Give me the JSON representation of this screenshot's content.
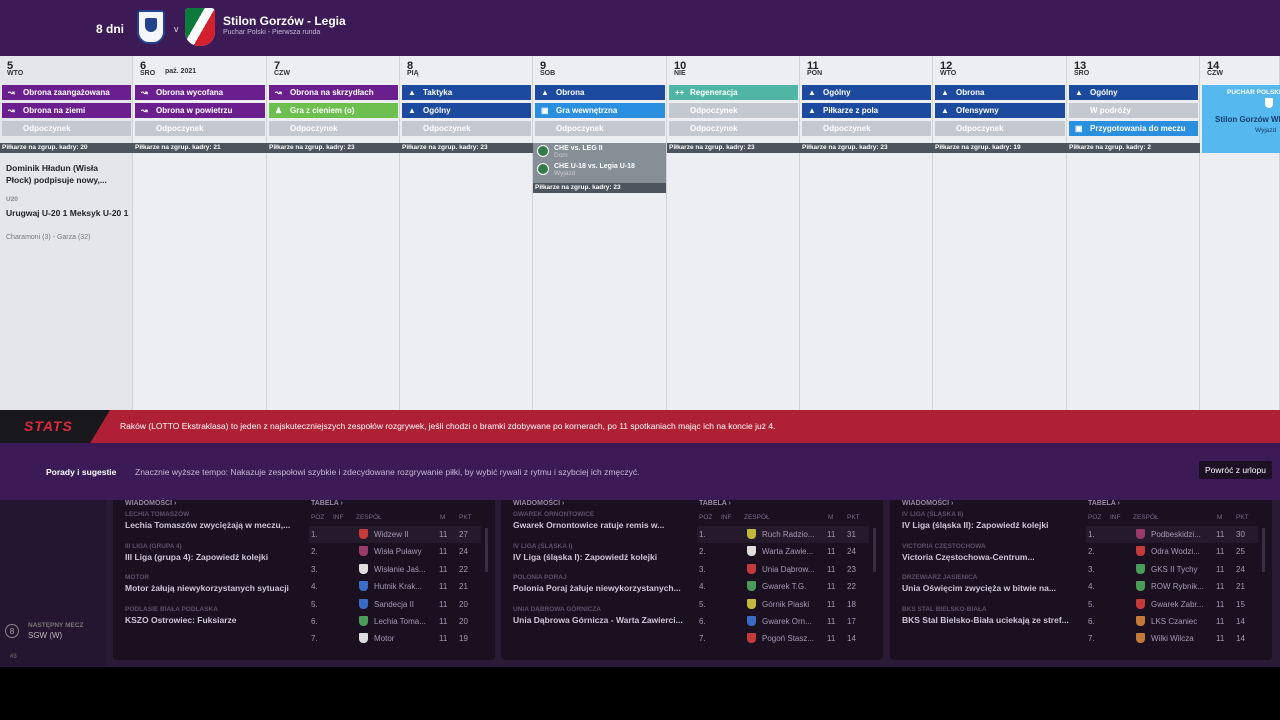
{
  "header": {
    "days_left": "8 dni",
    "vs": "v",
    "title": "Stilon Gorzów - Legia",
    "subtitle": "Puchar Polski - Pierwsza runda"
  },
  "calendar": {
    "days": [
      {
        "num": "5",
        "name": "WTO",
        "month": "",
        "sessions": [
          {
            "label": "Obrona zaangażowana",
            "kind": "p",
            "icon": "↝"
          },
          {
            "label": "Obrona na ziemi",
            "kind": "p",
            "icon": "↝"
          },
          {
            "label": "Odpoczynek",
            "kind": "r",
            "icon": ""
          }
        ],
        "bar": "Piłkarze na zgrup. kadry: 20"
      },
      {
        "num": "6",
        "name": "ŚRO",
        "month": "paź. 2021",
        "sessions": [
          {
            "label": "Obrona wycofana",
            "kind": "p",
            "icon": "↝"
          },
          {
            "label": "Obrona w powietrzu",
            "kind": "p",
            "icon": "↝"
          },
          {
            "label": "Odpoczynek",
            "kind": "r",
            "icon": ""
          }
        ],
        "bar": "Piłkarze na zgrup. kadry: 21"
      },
      {
        "num": "7",
        "name": "CZW",
        "month": "",
        "sessions": [
          {
            "label": "Obrona na skrzydłach",
            "kind": "p",
            "icon": "↝"
          },
          {
            "label": "Gra z cieniem (o)",
            "kind": "g2",
            "icon": "♟"
          },
          {
            "label": "Odpoczynek",
            "kind": "r",
            "icon": ""
          }
        ],
        "bar": "Piłkarze na zgrup. kadry: 23"
      },
      {
        "num": "8",
        "name": "PIĄ",
        "month": "",
        "sessions": [
          {
            "label": "Taktyka",
            "kind": "b",
            "icon": "▲"
          },
          {
            "label": "Ogólny",
            "kind": "b",
            "icon": "▲"
          },
          {
            "label": "Odpoczynek",
            "kind": "r",
            "icon": ""
          }
        ],
        "bar": "Piłkarze na zgrup. kadry: 23"
      },
      {
        "num": "9",
        "name": "SOB",
        "month": "",
        "sessions": [
          {
            "label": "Obrona",
            "kind": "b",
            "icon": "▲"
          },
          {
            "label": "Gra wewnętrzna",
            "kind": "c",
            "icon": "▣"
          },
          {
            "label": "Odpoczynek",
            "kind": "r",
            "icon": ""
          }
        ],
        "bar": ""
      },
      {
        "num": "10",
        "name": "NIE",
        "month": "",
        "sessions": [
          {
            "label": "Regeneracja",
            "kind": "t",
            "icon": "++"
          },
          {
            "label": "Odpoczynek",
            "kind": "r",
            "icon": ""
          },
          {
            "label": "Odpoczynek",
            "kind": "r",
            "icon": ""
          }
        ],
        "bar": "Piłkarze na zgrup. kadry: 23"
      },
      {
        "num": "11",
        "name": "PON",
        "month": "",
        "sessions": [
          {
            "label": "Ogólny",
            "kind": "b",
            "icon": "▲"
          },
          {
            "label": "Piłkarze z pola",
            "kind": "b",
            "icon": "▲"
          },
          {
            "label": "Odpoczynek",
            "kind": "r",
            "icon": ""
          }
        ],
        "bar": "Piłkarze na zgrup. kadry: 23"
      },
      {
        "num": "12",
        "name": "WTO",
        "month": "",
        "sessions": [
          {
            "label": "Obrona",
            "kind": "b",
            "icon": "▲"
          },
          {
            "label": "Ofensywny",
            "kind": "b",
            "icon": "▲"
          },
          {
            "label": "Odpoczynek",
            "kind": "r",
            "icon": ""
          }
        ],
        "bar": "Piłkarze na zgrup. kadry: 19"
      },
      {
        "num": "13",
        "name": "ŚRO",
        "month": "",
        "sessions": [
          {
            "label": "Ogólny",
            "kind": "b",
            "icon": "▲"
          },
          {
            "label": "W podróży",
            "kind": "r",
            "icon": ""
          },
          {
            "label": "Przygotowania do meczu",
            "kind": "c",
            "icon": "▣"
          }
        ],
        "bar": "Piłkarze na zgrup. kadry: 2"
      },
      {
        "num": "14",
        "name": "CZW",
        "month": "",
        "sessions": [],
        "bar": ""
      }
    ],
    "news_day5": {
      "headline": "Dominik Hładun (Wisła Płock) podpisuje nowy,...",
      "u20_label": "U20",
      "u20_title": "Urugwaj U-20 1 Meksyk U-20 1",
      "u20_scorers": "Charamoni (3) - Garza (32)"
    },
    "fixtures_day9": {
      "f1_title": "CHE vs. LEG II",
      "f1_sub": "Dom",
      "f2_title": "CHE U-18 vs. Legia U-18",
      "f2_sub": "Wyjazd",
      "bar": "Piłkarze na zgrup. kadry: 23"
    },
    "cup_day14": {
      "competition": "PUCHAR POLSKI",
      "team": "Stilon Gorzów Wlkp.",
      "venue": "Wyjazd"
    }
  },
  "stats_banner": {
    "logo": "STATS",
    "text": "Raków (LOTTO Ekstraklasa) to jeden z najskuteczniejszych zespołów rozgrywek, jeśli chodzi o bramki zdobywane po kornerach, po 11 spotkaniach mając ich na koncie już 4."
  },
  "tips": {
    "label": "Porady i sugestie",
    "text": "Znacznie wyższe tempo: Nakazuje zespołowi szybkie i zdecydowane rozgrywanie piłki, by wybić rywali z rytmu i szybciej ich zmęczyć.",
    "button": "Powróć z urlopu"
  },
  "next_match": {
    "num": "8",
    "label": "NASTĘPNY MECZ",
    "value": "SGW (W)",
    "footer": "#3"
  },
  "panels": [
    {
      "news_header": "WIADOMOŚCI ›",
      "table_header": "TABELA ›",
      "news": [
        {
          "cat": "LECHIA TOMASZÓW",
          "title": "Lechia Tomaszów zwyciężają w meczu,..."
        },
        {
          "cat": "III LIGA (GRUPA 4)",
          "title": "III Liga (grupa 4): Zapowiedź kolejki"
        },
        {
          "cat": "MOTOR",
          "title": "Motor żałują niewykorzystanych sytuacji"
        },
        {
          "cat": "PODLASIE BIAŁA PODLASKA",
          "title": "KSZO Ostrowiec: Fuksiarze"
        }
      ],
      "cols": {
        "poz": "POZ",
        "inf": "INF",
        "team": "ZESPÓŁ",
        "m": "M",
        "pkt": "PKT"
      },
      "rows": [
        {
          "poz": "1.",
          "team": "Widzew II",
          "m": "11",
          "pkt": "27",
          "color": "#c43a3a"
        },
        {
          "poz": "2.",
          "team": "Wisła Puławy",
          "m": "11",
          "pkt": "24",
          "color": "#9a3a6a"
        },
        {
          "poz": "3.",
          "team": "Wisłanie Jaś...",
          "m": "11",
          "pkt": "22",
          "color": "#dddddd"
        },
        {
          "poz": "4.",
          "team": "Hutnik Krak...",
          "m": "11",
          "pkt": "21",
          "color": "#3a6ac4"
        },
        {
          "poz": "5.",
          "team": "Sandecja II",
          "m": "11",
          "pkt": "20",
          "color": "#3a6ac4"
        },
        {
          "poz": "6.",
          "team": "Lechia Toma...",
          "m": "11",
          "pkt": "20",
          "color": "#4a9a5a"
        },
        {
          "poz": "7.",
          "team": "Motor",
          "m": "11",
          "pkt": "19",
          "color": "#dddddd"
        }
      ]
    },
    {
      "news_header": "WIADOMOŚCI ›",
      "table_header": "TABELA ›",
      "news": [
        {
          "cat": "GWAREK ORNONTOWICE",
          "title": "Gwarek Ornontowice ratuje remis w..."
        },
        {
          "cat": "IV LIGA (ŚLĄSKA I)",
          "title": "IV Liga (śląska I): Zapowiedź kolejki"
        },
        {
          "cat": "POLONIA PORAJ",
          "title": "Polonia Poraj żałuje niewykorzystanych..."
        },
        {
          "cat": "UNIA DĄBROWA GÓRNICZA",
          "title": "Unia Dąbrowa Górnicza - Warta Zawierci..."
        }
      ],
      "cols": {
        "poz": "POZ",
        "inf": "INF",
        "team": "ZESPÓŁ",
        "m": "M",
        "pkt": "PKT"
      },
      "rows": [
        {
          "poz": "1.",
          "team": "Ruch Radzio...",
          "m": "11",
          "pkt": "31",
          "color": "#c4b83a"
        },
        {
          "poz": "2.",
          "team": "Warta Zawie...",
          "m": "11",
          "pkt": "24",
          "color": "#dddddd"
        },
        {
          "poz": "3.",
          "team": "Unia Dąbrow...",
          "m": "11",
          "pkt": "23",
          "color": "#c43a3a"
        },
        {
          "poz": "4.",
          "team": "Gwarek T.G.",
          "m": "11",
          "pkt": "22",
          "color": "#4a9a5a"
        },
        {
          "poz": "5.",
          "team": "Górnik Piaski",
          "m": "11",
          "pkt": "18",
          "color": "#c4b83a"
        },
        {
          "poz": "6.",
          "team": "Gwarek Orn...",
          "m": "11",
          "pkt": "17",
          "color": "#3a6ac4"
        },
        {
          "poz": "7.",
          "team": "Pogoń Stasz...",
          "m": "11",
          "pkt": "14",
          "color": "#c43a3a"
        }
      ]
    },
    {
      "news_header": "WIADOMOŚCI ›",
      "table_header": "TABELA ›",
      "news": [
        {
          "cat": "IV LIGA (ŚLĄSKA II)",
          "title": "IV Liga (śląska II): Zapowiedź kolejki"
        },
        {
          "cat": "VICTORIA CZĘSTOCHOWA",
          "title": "Victoria Częstochowa-Centrum..."
        },
        {
          "cat": "DRZEWIARZ JASIENICA",
          "title": "Unia Oświęcim zwycięża w bitwie na..."
        },
        {
          "cat": "BKS STAL BIELSKO-BIAŁA",
          "title": "BKS Stal Bielsko-Biała uciekają ze stref..."
        }
      ],
      "cols": {
        "poz": "POZ",
        "inf": "INF",
        "team": "ZESPÓŁ",
        "m": "M",
        "pkt": "PKT"
      },
      "rows": [
        {
          "poz": "1.",
          "team": "Podbeskidzi...",
          "m": "11",
          "pkt": "30",
          "color": "#9a3a6a"
        },
        {
          "poz": "2.",
          "team": "Odra Wodzi...",
          "m": "11",
          "pkt": "25",
          "color": "#c43a3a"
        },
        {
          "poz": "3.",
          "team": "GKS II Tychy",
          "m": "11",
          "pkt": "24",
          "color": "#4a9a5a"
        },
        {
          "poz": "4.",
          "team": "ROW Rybnik...",
          "m": "11",
          "pkt": "21",
          "color": "#4a9a5a"
        },
        {
          "poz": "5.",
          "team": "Gwarek Zabr...",
          "m": "11",
          "pkt": "15",
          "color": "#c43a3a"
        },
        {
          "poz": "6.",
          "team": "LKS Czaniec",
          "m": "11",
          "pkt": "14",
          "color": "#c4783a"
        },
        {
          "poz": "7.",
          "team": "Wilki Wilcza",
          "m": "11",
          "pkt": "14",
          "color": "#c4783a"
        }
      ]
    }
  ]
}
